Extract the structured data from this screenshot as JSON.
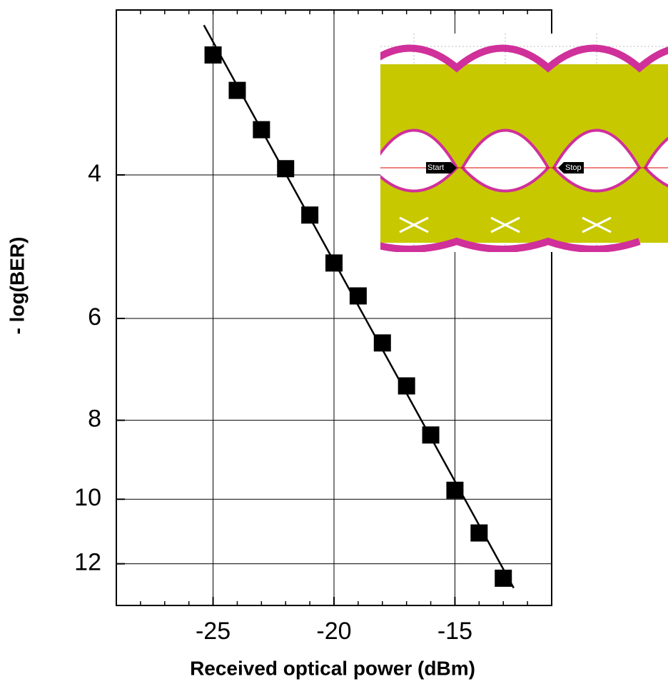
{
  "chart_data": {
    "type": "scatter",
    "x_label": "Received optical power (dBm)",
    "y_label": "- log(BER)",
    "x": [
      -25,
      -24,
      -23,
      -22,
      -21,
      -20,
      -19,
      -18,
      -17,
      -16,
      -15,
      -14,
      -13
    ],
    "values": [
      2.85,
      3.15,
      3.52,
      3.93,
      4.48,
      5.13,
      5.63,
      6.43,
      7.26,
      8.34,
      9.75,
      11.0,
      12.5
    ],
    "color": "#000000",
    "fit": {
      "x": [
        -25.38,
        -12.57
      ],
      "values": [
        2.62,
        12.85
      ],
      "color": "#000000"
    },
    "xlim": [
      -29,
      -11
    ],
    "xticks": [
      -25,
      -20,
      -15
    ],
    "ylim": [
      2.51,
      13.5
    ],
    "yticks": [
      4,
      6,
      8,
      10,
      12
    ],
    "y_log": true,
    "y_inverted": true,
    "grid": true,
    "inset": {
      "start_label": "Start",
      "stop_label": "Stop"
    }
  }
}
